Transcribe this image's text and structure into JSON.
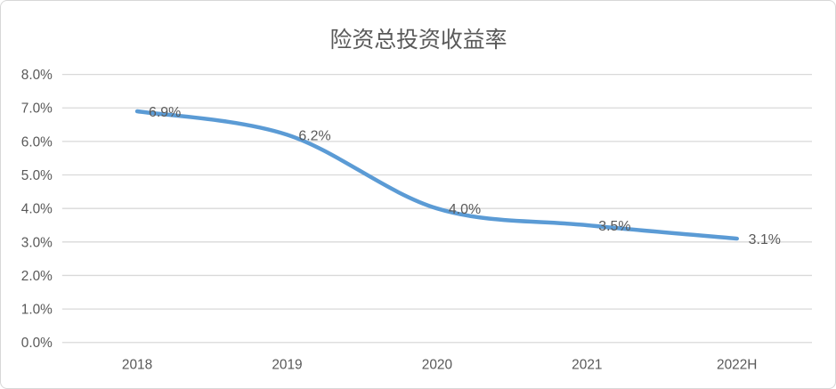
{
  "chart_data": {
    "type": "line",
    "title": "险资总投资收益率",
    "categories": [
      "2018",
      "2019",
      "2020",
      "2021",
      "2022H"
    ],
    "series": [
      {
        "name": "险资总投资收益率",
        "values": [
          6.9,
          6.2,
          4.0,
          3.5,
          3.1
        ],
        "data_labels": [
          "6.9%",
          "6.2%",
          "4.0%",
          "3.5%",
          "3.1%"
        ]
      }
    ],
    "xlabel": "",
    "ylabel": "",
    "ylim": [
      0,
      8
    ],
    "yticks": [
      {
        "value": 0,
        "label": "0.0%"
      },
      {
        "value": 1,
        "label": "1.0%"
      },
      {
        "value": 2,
        "label": "2.0%"
      },
      {
        "value": 3,
        "label": "3.0%"
      },
      {
        "value": 4,
        "label": "4.0%"
      },
      {
        "value": 5,
        "label": "5.0%"
      },
      {
        "value": 6,
        "label": "6.0%"
      },
      {
        "value": 7,
        "label": "7.0%"
      },
      {
        "value": 8,
        "label": "8.0%"
      }
    ],
    "grid": true,
    "legend": "none",
    "smooth": true,
    "colors": {
      "line": "#5B9BD5",
      "grid": "#D9D9D9",
      "text": "#595959",
      "background": "#FFFFFF",
      "border": "#D7D7D7"
    }
  }
}
